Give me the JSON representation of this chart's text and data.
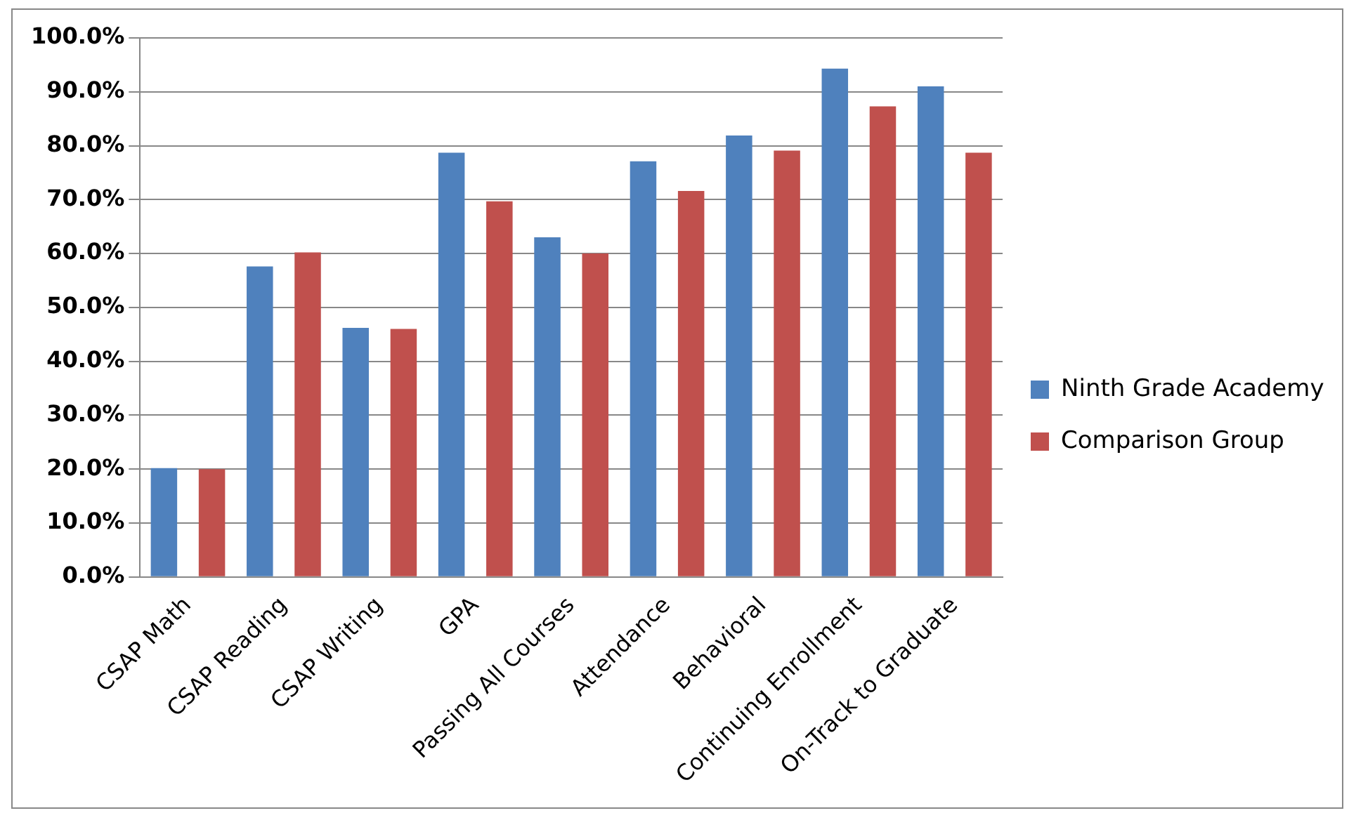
{
  "chart_data": {
    "type": "bar",
    "categories": [
      "CSAP Math",
      "CSAP Reading",
      "CSAP Writing",
      "GPA",
      "Passing All Courses",
      "Attendance",
      "Behavioral",
      "Continuing Enrollment",
      "On-Track to Graduate"
    ],
    "series": [
      {
        "name": "Ninth Grade Academy",
        "color": "#4f81bd",
        "values": [
          20.2,
          57.6,
          46.2,
          78.7,
          63,
          77.1,
          81.9,
          94.3,
          91
        ]
      },
      {
        "name": "Comparison Group",
        "color": "#c0504d",
        "values": [
          20,
          60.2,
          46,
          69.7,
          60,
          71.6,
          79.1,
          87.3,
          78.7
        ]
      }
    ],
    "ylim": [
      0,
      100
    ],
    "yticks": [
      {
        "value": 0,
        "label": "0.0%"
      },
      {
        "value": 10,
        "label": "10.0%"
      },
      {
        "value": 20,
        "label": "20.0%"
      },
      {
        "value": 30,
        "label": "30.0%"
      },
      {
        "value": 40,
        "label": "40.0%"
      },
      {
        "value": 50,
        "label": "50.0%"
      },
      {
        "value": 60,
        "label": "60.0%"
      },
      {
        "value": 70,
        "label": "70.0%"
      },
      {
        "value": 80,
        "label": "80.0%"
      },
      {
        "value": 90,
        "label": "90.0%"
      },
      {
        "value": 100,
        "label": "100.0%"
      }
    ],
    "grid": "y",
    "legend": "right"
  }
}
